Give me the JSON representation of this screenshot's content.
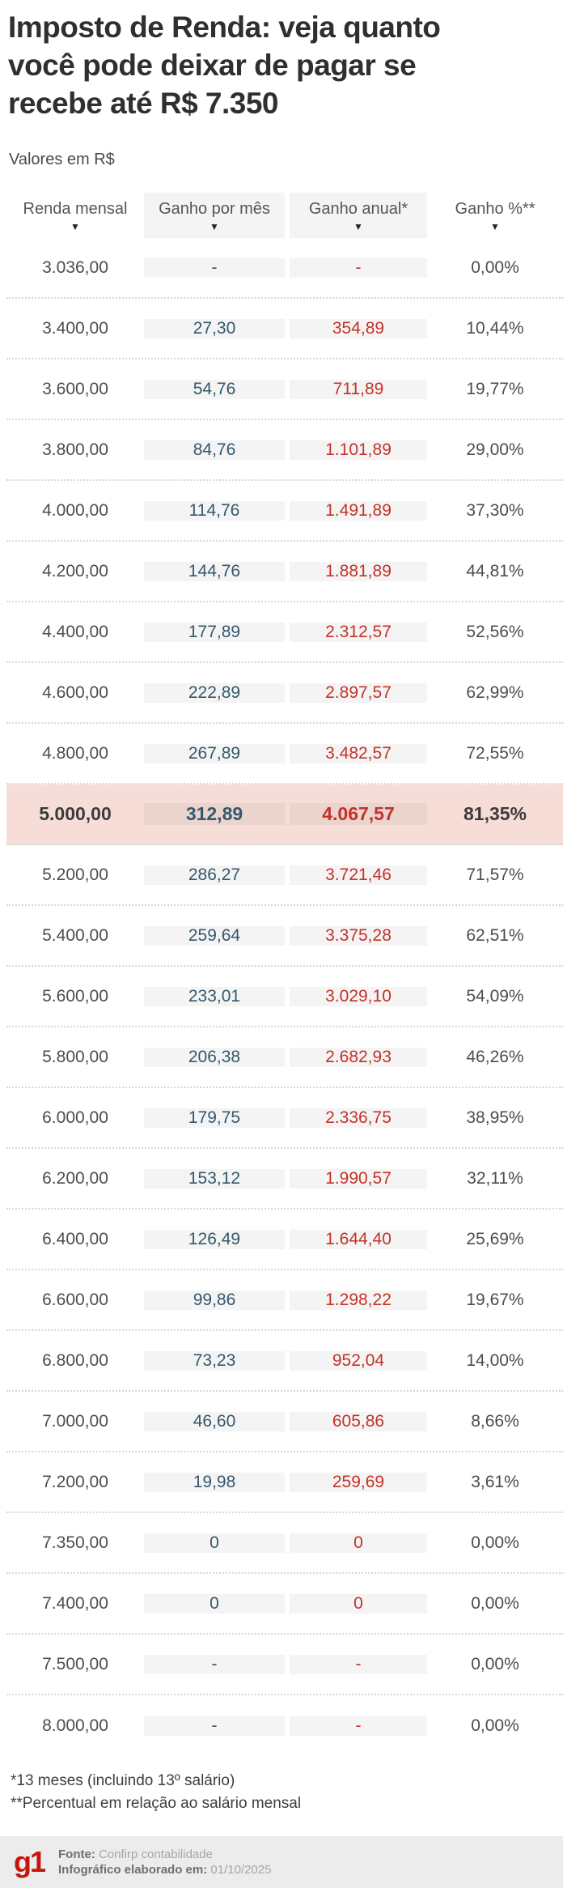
{
  "title_lines": [
    "Imposto de Renda: veja quanto",
    "você pode deixar de pagar se",
    "recebe até R$ 7.350"
  ],
  "subtitle": "Valores em R$",
  "icons": {
    "column_triangle": "▼"
  },
  "chart_data": {
    "type": "table",
    "title": "Imposto de Renda: veja quanto você pode deixar de pagar se recebe até R$ 7.350",
    "unit_note": "Valores em R$",
    "columns": [
      "Renda mensal",
      "Ganho por mês",
      "Ganho anual*",
      "Ganho %**"
    ],
    "rows": [
      [
        "3.036,00",
        "-",
        "-",
        "0,00%"
      ],
      [
        "3.400,00",
        "27,30",
        "354,89",
        "10,44%"
      ],
      [
        "3.600,00",
        "54,76",
        "711,89",
        "19,77%"
      ],
      [
        "3.800,00",
        "84,76",
        "1.101,89",
        "29,00%"
      ],
      [
        "4.000,00",
        "114,76",
        "1.491,89",
        "37,30%"
      ],
      [
        "4.200,00",
        "144,76",
        "1.881,89",
        "44,81%"
      ],
      [
        "4.400,00",
        "177,89",
        "2.312,57",
        "52,56%"
      ],
      [
        "4.600,00",
        "222,89",
        "2.897,57",
        "62,99%"
      ],
      [
        "4.800,00",
        "267,89",
        "3.482,57",
        "72,55%"
      ],
      [
        "5.000,00",
        "312,89",
        "4.067,57",
        "81,35%"
      ],
      [
        "5.200,00",
        "286,27",
        "3.721,46",
        "71,57%"
      ],
      [
        "5.400,00",
        "259,64",
        "3.375,28",
        "62,51%"
      ],
      [
        "5.600,00",
        "233,01",
        "3.029,10",
        "54,09%"
      ],
      [
        "5.800,00",
        "206,38",
        "2.682,93",
        "46,26%"
      ],
      [
        "6.000,00",
        "179,75",
        "2.336,75",
        "38,95%"
      ],
      [
        "6.200,00",
        "153,12",
        "1.990,57",
        "32,11%"
      ],
      [
        "6.400,00",
        "126,49",
        "1.644,40",
        "25,69%"
      ],
      [
        "6.600,00",
        "99,86",
        "1.298,22",
        "19,67%"
      ],
      [
        "6.800,00",
        "73,23",
        "952,04",
        "14,00%"
      ],
      [
        "7.000,00",
        "46,60",
        "605,86",
        "8,66%"
      ],
      [
        "7.200,00",
        "19,98",
        "259,69",
        "3,61%"
      ],
      [
        "7.350,00",
        "0",
        "0",
        "0,00%"
      ],
      [
        "7.400,00",
        "0",
        "0",
        "0,00%"
      ],
      [
        "7.500,00",
        "-",
        "-",
        "0,00%"
      ],
      [
        "8.000,00",
        "-",
        "-",
        "0,00%"
      ]
    ],
    "highlight_row": 9,
    "layout": {
      "grid": "off",
      "row_separator": "dotted",
      "shaded_columns": [
        1,
        2
      ]
    }
  },
  "footnotes": [
    "*13 meses (incluindo 13º salário)",
    "**Percentual em relação ao salário mensal"
  ],
  "footer": {
    "logo": "g1",
    "source_label": "Fonte:",
    "source_value": "Confirp contabilidade",
    "date_label": "Infográfico elaborado em:",
    "date_value": "01/10/2025"
  },
  "colors": {
    "gain_month": "#34586c",
    "gain_annual": "#c43228",
    "highlight_bg": "#f6ddd8",
    "brand_red": "#c4170c",
    "footer_bg": "#ececec"
  }
}
